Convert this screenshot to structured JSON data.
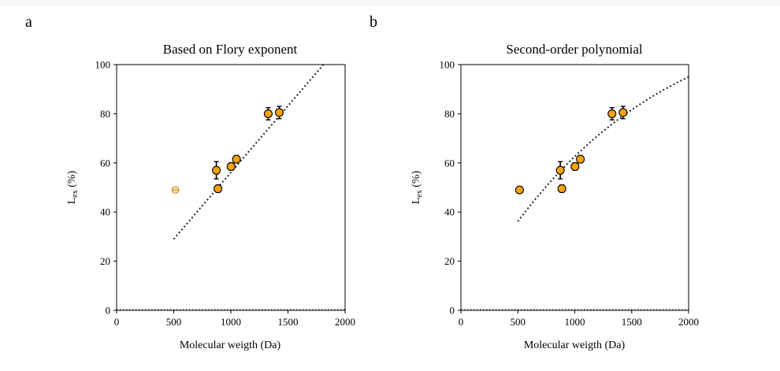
{
  "chart_data": [
    {
      "type": "scatter",
      "panel_label": "a",
      "title": "Based on Flory exponent",
      "xlabel": "Molecular weigth (Da)",
      "ylabel_main": "L",
      "ylabel_sub": "ex",
      "ylabel_suffix": "(%)",
      "xlim": [
        0,
        2000
      ],
      "ylim": [
        0,
        100
      ],
      "xticks": [
        "0",
        "500",
        "1000",
        "1500",
        "2000"
      ],
      "yticks": [
        "0",
        "20",
        "40",
        "60",
        "80",
        "100"
      ],
      "points": [
        {
          "x": 873,
          "y": 57,
          "err": 3.5
        },
        {
          "x": 887,
          "y": 49.5,
          "err": 1.5
        },
        {
          "x": 1002,
          "y": 58.5,
          "err": 1.5
        },
        {
          "x": 1049,
          "y": 61.5,
          "err": 1.5
        },
        {
          "x": 1327,
          "y": 80,
          "err": 2.5
        },
        {
          "x": 1424,
          "y": 80.5,
          "err": 2.5
        }
      ],
      "outliers": [
        {
          "x": 515,
          "y": 49
        }
      ],
      "fit_line": {
        "style": "dotted",
        "x": [
          500,
          1810
        ],
        "y": [
          29,
          100
        ]
      },
      "baseline": {
        "style": "dotted",
        "y": 0
      },
      "colors": {
        "marker_fill": "#f7a10c",
        "marker_edge": "#000000",
        "outlier_edge": "#c77f0a"
      }
    },
    {
      "type": "scatter",
      "panel_label": "b",
      "title": "Second-order polynomial",
      "xlabel": "Molecular weigth (Da)",
      "ylabel_main": "L",
      "ylabel_sub": "ex",
      "ylabel_suffix": "(%)",
      "xlim": [
        0,
        2000
      ],
      "ylim": [
        0,
        100
      ],
      "xticks": [
        "0",
        "500",
        "1000",
        "1500",
        "2000"
      ],
      "yticks": [
        "0",
        "20",
        "40",
        "60",
        "80",
        "100"
      ],
      "points": [
        {
          "x": 515,
          "y": 49,
          "err": 1.2
        },
        {
          "x": 873,
          "y": 57,
          "err": 3.5
        },
        {
          "x": 887,
          "y": 49.5,
          "err": 1.5
        },
        {
          "x": 1002,
          "y": 58.5,
          "err": 1.5
        },
        {
          "x": 1049,
          "y": 61.5,
          "err": 1.5
        },
        {
          "x": 1327,
          "y": 80,
          "err": 2.5
        },
        {
          "x": 1424,
          "y": 80.5,
          "err": 2.5
        }
      ],
      "fit_curve": {
        "style": "dotted",
        "x": [
          500,
          1000,
          1500,
          2000
        ],
        "y": [
          36.2,
          62.6,
          81.6,
          95
        ]
      },
      "baseline": {
        "style": "dotted",
        "y": 0
      },
      "colors": {
        "marker_fill": "#f7a10c",
        "marker_edge": "#000000"
      }
    }
  ]
}
